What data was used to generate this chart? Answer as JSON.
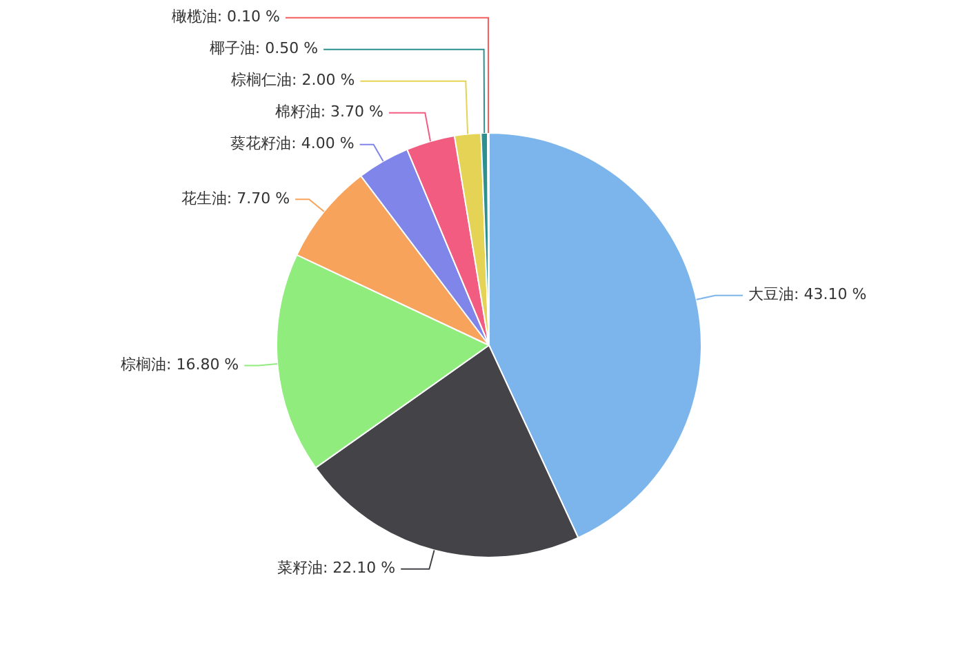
{
  "chart_data": {
    "type": "pie",
    "categories": [
      "大豆油",
      "菜籽油",
      "棕榈油",
      "花生油",
      "葵花籽油",
      "棉籽油",
      "棕榈仁油",
      "椰子油",
      "橄榄油"
    ],
    "values": [
      43.1,
      22.1,
      16.8,
      7.7,
      4.0,
      3.7,
      2.0,
      0.5,
      0.1
    ],
    "value_labels": [
      "43.10 %",
      "22.10 %",
      "16.80 %",
      "7.70 %",
      "4.00 %",
      "3.70 %",
      "2.00 %",
      "0.50 %",
      "0.10 %"
    ],
    "colors": [
      "#7cb5ec",
      "#434348",
      "#90ed7d",
      "#f7a35c",
      "#8085e9",
      "#f15c80",
      "#e4d354",
      "#2b908f",
      "#f45b5b"
    ],
    "legend": false
  }
}
